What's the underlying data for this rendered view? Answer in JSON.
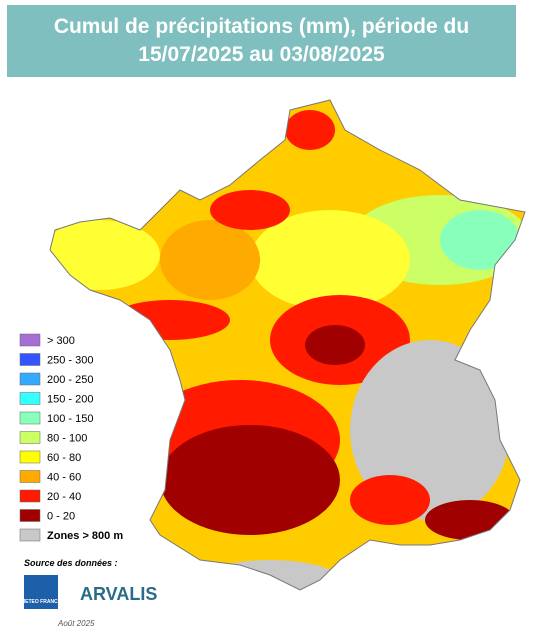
{
  "header": {
    "title_lines": [
      "Cumul de précipitations (mm), période du",
      "15/07/2025 au 03/08/2025"
    ]
  },
  "legend": {
    "items": [
      {
        "label": "> 300",
        "color": "#a66fd6"
      },
      {
        "label": "250 - 300",
        "color": "#3355ff"
      },
      {
        "label": "200 - 250",
        "color": "#33aaff"
      },
      {
        "label": "150 - 200",
        "color": "#33ffff"
      },
      {
        "label": "100 - 150",
        "color": "#88ffbb"
      },
      {
        "label": "80 - 100",
        "color": "#ccff66"
      },
      {
        "label": "60 - 80",
        "color": "#ffff00"
      },
      {
        "label": "40 - 60",
        "color": "#ffaa00"
      },
      {
        "label": "20 - 40",
        "color": "#ff1a00"
      },
      {
        "label": "0 - 20",
        "color": "#a00000"
      },
      {
        "label": "Zones > 800 m",
        "color": "#c8c8c8"
      }
    ]
  },
  "footer": {
    "source": "Source des données :",
    "logo_left": "METEO FRANCE",
    "logo_right": "ARVALIS",
    "date": "Août 2025"
  }
}
